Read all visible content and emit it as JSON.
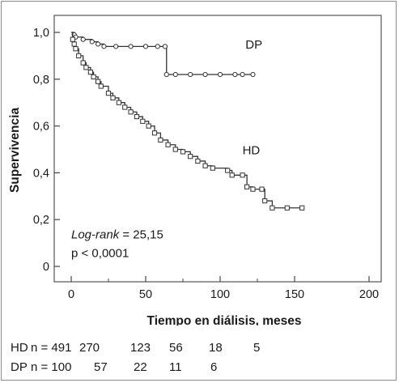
{
  "chart_data": {
    "type": "line",
    "title": "",
    "xlabel": "Tiempo en diálisis, meses",
    "ylabel": "Supervivencia",
    "xlim": [
      0,
      200
    ],
    "ylim": [
      0,
      1.0
    ],
    "x_ticks": [
      "0",
      "50",
      "100",
      "150",
      "200"
    ],
    "y_ticks": [
      "0",
      "0,2",
      "0,4",
      "0,6",
      "0,8",
      "1,0"
    ],
    "grid": false,
    "annotation": {
      "label": "Log-rank",
      "value": "= 25,15",
      "p": "p < 0,0001"
    },
    "series": [
      {
        "name": "DP",
        "marker": "circle",
        "points": [
          [
            0,
            1.0
          ],
          [
            2,
            0.99
          ],
          [
            3,
            0.98
          ],
          [
            8,
            0.97
          ],
          [
            14,
            0.96
          ],
          [
            18,
            0.95
          ],
          [
            22,
            0.94
          ],
          [
            30,
            0.94
          ],
          [
            40,
            0.94
          ],
          [
            50,
            0.94
          ],
          [
            58,
            0.94
          ],
          [
            63,
            0.94
          ],
          [
            64,
            0.82
          ],
          [
            70,
            0.82
          ],
          [
            80,
            0.82
          ],
          [
            90,
            0.82
          ],
          [
            100,
            0.82
          ],
          [
            110,
            0.82
          ],
          [
            115,
            0.82
          ],
          [
            122,
            0.82
          ]
        ]
      },
      {
        "name": "HD",
        "marker": "square",
        "points": [
          [
            0,
            1.0
          ],
          [
            1,
            0.97
          ],
          [
            2,
            0.95
          ],
          [
            3,
            0.93
          ],
          [
            5,
            0.9
          ],
          [
            8,
            0.87
          ],
          [
            10,
            0.85
          ],
          [
            13,
            0.83
          ],
          [
            15,
            0.81
          ],
          [
            18,
            0.79
          ],
          [
            20,
            0.77
          ],
          [
            25,
            0.74
          ],
          [
            28,
            0.72
          ],
          [
            32,
            0.7
          ],
          [
            36,
            0.68
          ],
          [
            40,
            0.66
          ],
          [
            44,
            0.64
          ],
          [
            48,
            0.62
          ],
          [
            52,
            0.6
          ],
          [
            56,
            0.57
          ],
          [
            60,
            0.54
          ],
          [
            65,
            0.52
          ],
          [
            70,
            0.5
          ],
          [
            75,
            0.49
          ],
          [
            80,
            0.47
          ],
          [
            85,
            0.45
          ],
          [
            90,
            0.43
          ],
          [
            95,
            0.42
          ],
          [
            105,
            0.41
          ],
          [
            108,
            0.39
          ],
          [
            115,
            0.39
          ],
          [
            118,
            0.34
          ],
          [
            122,
            0.33
          ],
          [
            128,
            0.33
          ],
          [
            130,
            0.28
          ],
          [
            135,
            0.25
          ],
          [
            145,
            0.25
          ],
          [
            155,
            0.25
          ]
        ]
      }
    ],
    "at_risk": {
      "times": [
        0,
        25,
        50,
        75,
        100,
        125
      ],
      "rows": [
        {
          "label": "HD",
          "n_label": "n = 491",
          "values": [
            "270",
            "123",
            "56",
            "18",
            "5"
          ]
        },
        {
          "label": "DP",
          "n_label": "n = 100",
          "values": [
            "57",
            "22",
            "11",
            "6"
          ]
        }
      ]
    }
  }
}
